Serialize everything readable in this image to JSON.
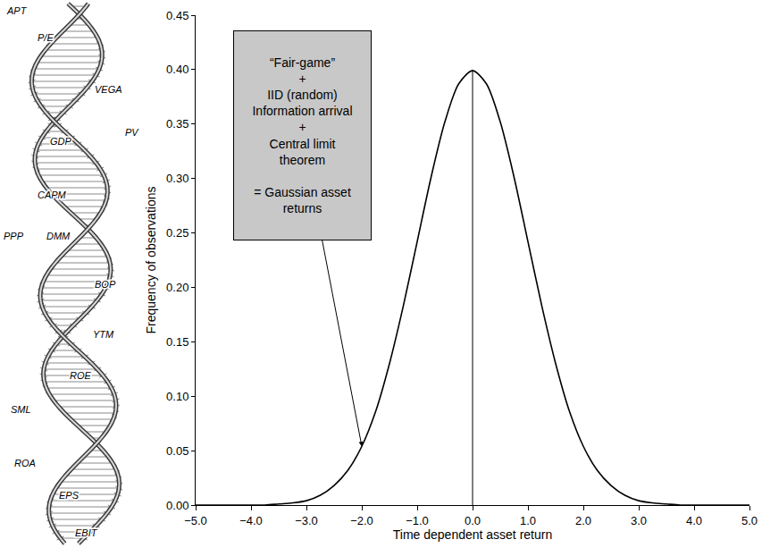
{
  "chart_data": {
    "type": "line",
    "xlabel": "Time dependent asset return",
    "ylabel": "Frequency of observations",
    "color": "#000000",
    "grid": false,
    "x": [
      -5,
      -4.75,
      -4.5,
      -4.25,
      -4,
      -3.75,
      -3.5,
      -3.25,
      -3,
      -2.75,
      -2.5,
      -2.25,
      -2,
      -1.75,
      -1.5,
      -1.25,
      -1,
      -0.75,
      -0.5,
      -0.25,
      0,
      0.25,
      0.5,
      0.75,
      1,
      1.25,
      1.5,
      1.75,
      2,
      2.25,
      2.5,
      2.75,
      3,
      3.25,
      3.5,
      3.75,
      4,
      4.25,
      4.5,
      4.75,
      5
    ],
    "values": [
      0,
      0,
      0,
      0,
      0,
      0,
      0.001,
      0.002,
      0.004,
      0.009,
      0.018,
      0.032,
      0.054,
      0.086,
      0.13,
      0.183,
      0.242,
      0.301,
      0.352,
      0.387,
      0.399,
      0.387,
      0.352,
      0.301,
      0.242,
      0.183,
      0.13,
      0.086,
      0.054,
      0.032,
      0.018,
      0.009,
      0.004,
      0.002,
      0.001,
      0,
      0,
      0,
      0,
      0,
      0
    ],
    "xlim": [
      -5,
      5
    ],
    "xticks": [
      {
        "value": -5,
        "label": "−5.0"
      },
      {
        "value": -4,
        "label": "−4.0"
      },
      {
        "value": -3,
        "label": "−3.0"
      },
      {
        "value": -2,
        "label": "−2.0"
      },
      {
        "value": -1,
        "label": "−1.0"
      },
      {
        "value": 0,
        "label": "0.0"
      },
      {
        "value": 1,
        "label": "1.0"
      },
      {
        "value": 2,
        "label": "2.0"
      },
      {
        "value": 3,
        "label": "3.0"
      },
      {
        "value": 4,
        "label": "4.0"
      },
      {
        "value": 5,
        "label": "5.0"
      }
    ],
    "ylim": [
      0,
      0.45
    ],
    "yticks": [
      {
        "value": 0,
        "label": "0.00"
      },
      {
        "value": 0.05,
        "label": "0.05"
      },
      {
        "value": 0.1,
        "label": "0.10"
      },
      {
        "value": 0.15,
        "label": "0.15"
      },
      {
        "value": 0.2,
        "label": "0.20"
      },
      {
        "value": 0.25,
        "label": "0.25"
      },
      {
        "value": 0.3,
        "label": "0.30"
      },
      {
        "value": 0.35,
        "label": "0.35"
      },
      {
        "value": 0.4,
        "label": "0.40"
      },
      {
        "value": 0.45,
        "label": "0.45"
      }
    ],
    "reference_line": {
      "x": 0,
      "y": [
        0,
        0.4
      ]
    },
    "annotation": {
      "lines_above": [
        "“Fair-game”",
        "+",
        "IID (random)",
        "Information arrival",
        "+",
        "Central limit",
        "theorem"
      ],
      "lines_below": [
        "= Gaussian asset",
        "returns"
      ],
      "arrow_x": -2
    }
  },
  "helix_labels": [
    "APT",
    "P/E",
    "VEGA",
    "PV",
    "GDP",
    "CAPM",
    "PPP",
    "DMM",
    "BOP",
    "YTM",
    "ROE",
    "SML",
    "ROA",
    "EPS",
    "EBIT"
  ]
}
